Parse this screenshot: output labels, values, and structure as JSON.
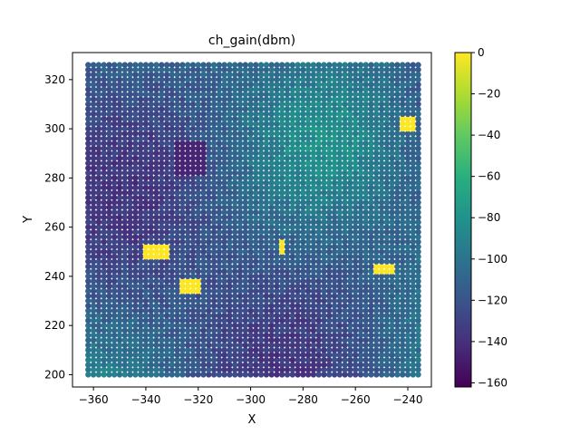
{
  "chart_data": {
    "type": "heatmap",
    "title": "ch_gain(dbm)",
    "xlabel": "X",
    "ylabel": "Y",
    "xlim": [
      -368,
      -231
    ],
    "ylim": [
      195,
      331
    ],
    "x_ticks": [
      -360,
      -340,
      -320,
      -300,
      -280,
      -260,
      -240
    ],
    "y_ticks": [
      200,
      220,
      240,
      260,
      280,
      300,
      320
    ],
    "grid": false,
    "colormap": "viridis",
    "colorbar": {
      "range": [
        -162,
        0
      ],
      "ticks": [
        0,
        -20,
        -40,
        -60,
        -80,
        -100,
        -120,
        -140,
        -160
      ]
    },
    "sample_grid": {
      "x_range": [
        -362,
        -236
      ],
      "y_range": [
        200,
        326
      ],
      "step": 2
    },
    "background_level": -105,
    "regions": [
      {
        "shape": "rect",
        "x": [
          -340,
          -331
        ],
        "y": [
          247,
          253
        ],
        "value": 0
      },
      {
        "shape": "rect",
        "x": [
          -327,
          -320
        ],
        "y": [
          233,
          238
        ],
        "value": 0
      },
      {
        "shape": "rect",
        "x": [
          -252,
          -245
        ],
        "y": [
          241,
          245
        ],
        "value": 0
      },
      {
        "shape": "rect",
        "x": [
          -242,
          -237
        ],
        "y": [
          299,
          305
        ],
        "value": 0
      },
      {
        "shape": "rect",
        "x": [
          -289,
          -287
        ],
        "y": [
          249,
          254
        ],
        "value": 0
      },
      {
        "shape": "rect",
        "x": [
          -328,
          -318
        ],
        "y": [
          281,
          294
        ],
        "value": -145
      }
    ]
  }
}
